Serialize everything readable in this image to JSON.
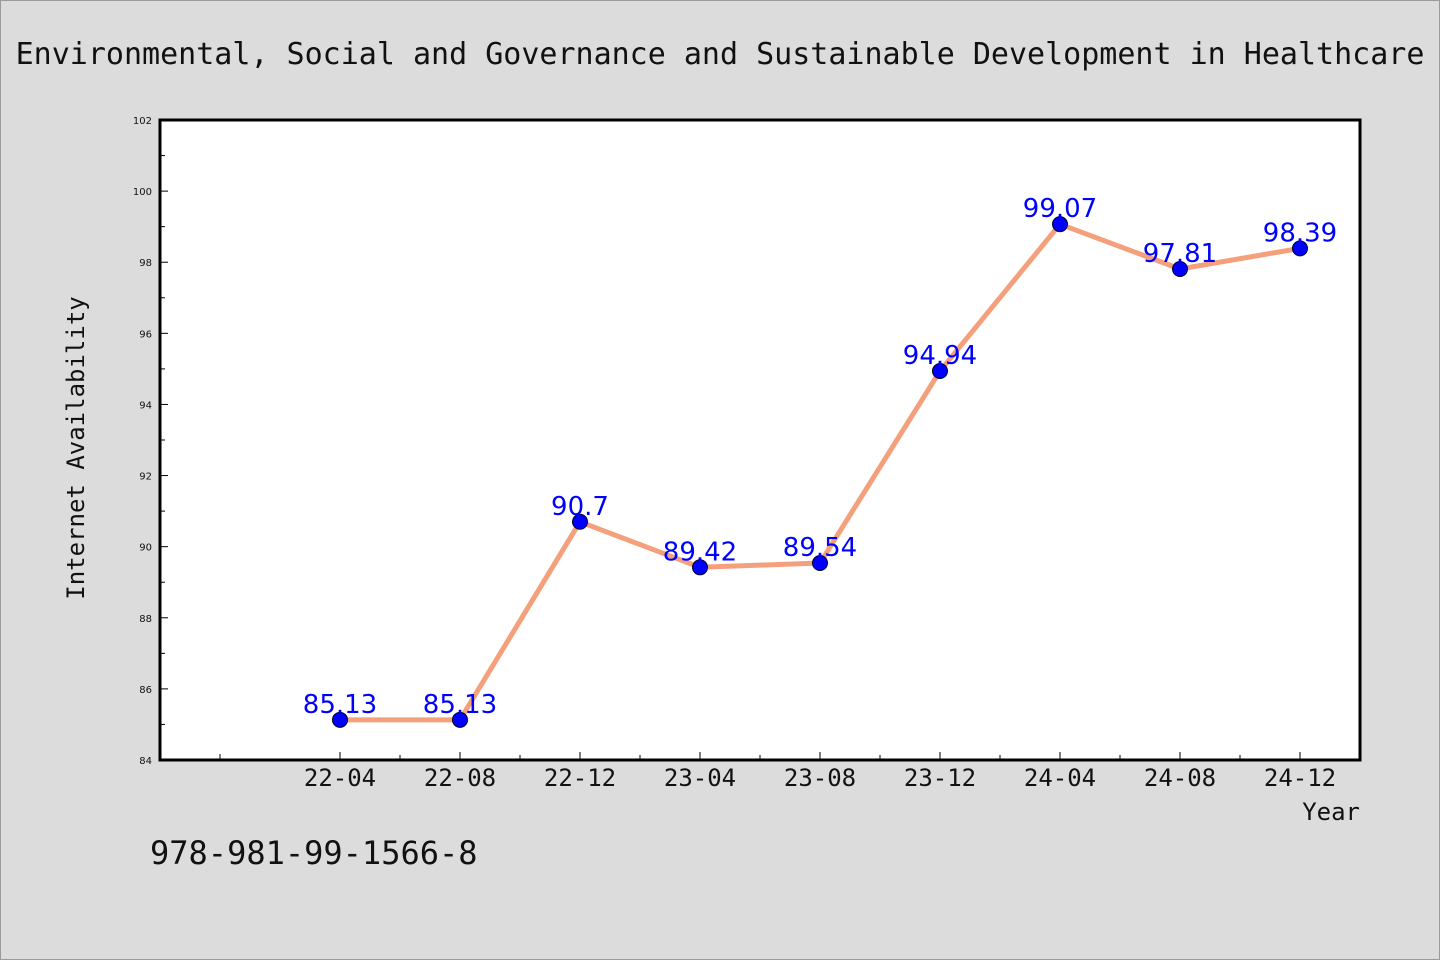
{
  "chart_data": {
    "type": "line",
    "title": "Environmental, Social and Governance and Sustainable Development in Healthcare",
    "xlabel": "Year",
    "ylabel": "Internet Availability",
    "categories": [
      "22-04",
      "22-08",
      "22-12",
      "23-04",
      "23-08",
      "23-12",
      "24-04",
      "24-08",
      "24-12"
    ],
    "series": [
      {
        "values": [
          85.13,
          85.13,
          90.7,
          89.42,
          89.54,
          94.94,
          99.07,
          97.81,
          98.39
        ],
        "data_labels": [
          "85.13",
          "85.13",
          "90.7",
          "89.42",
          "89.54",
          "94.94",
          "99.07",
          "97.81",
          "98.39"
        ],
        "line_color": "#f4a07c",
        "marker_color": "#0000ff"
      }
    ],
    "ylim": [
      84,
      102
    ],
    "yticks": [
      "84",
      "86",
      "88",
      "90",
      "92",
      "94",
      "96",
      "98",
      "100",
      "102"
    ],
    "grid": false,
    "legend": "none"
  },
  "footer": {
    "text": "978-981-99-1566-8"
  },
  "colors": {
    "background": "#dcdcdc",
    "plot_background": "#ffffff"
  }
}
